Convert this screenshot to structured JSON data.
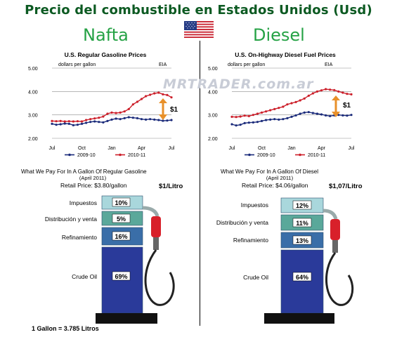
{
  "page_title": "Precio del combustible en Estados Unidos (Usd)",
  "flag_icon": "us-flag-icon",
  "watermark": "MRTRADER.com.ar",
  "footnote": "1 Gallon = 3.785 Litros",
  "colors": {
    "title": "#0c5a22",
    "fuel_heading": "#25a245",
    "series_2009_10": "#1a2a7a",
    "series_2010_11": "#cc1f2a",
    "taxes": "#a9d7dc",
    "distribution": "#5aa89a",
    "refining": "#3a6ea8",
    "crude_oil": "#2a3a9a",
    "pump_red": "#d8202a"
  },
  "panels": [
    {
      "heading": "Nafta",
      "price_annotation": "$1",
      "breakdown_title": "What We Pay For In A Gallon Of Regular Gasoline",
      "breakdown_date": "(April 2011)",
      "retail_price": "Retail Price: $3.80/gallon",
      "per_litre": "$1/Litro",
      "components": [
        {
          "label": "Impuestos",
          "value": "10%",
          "pct": 10
        },
        {
          "label": "Distribución y venta",
          "value": "5%",
          "pct": 5
        },
        {
          "label": "Refinamiento",
          "value": "16%",
          "pct": 16
        },
        {
          "label": "Crude Oil",
          "value": "69%",
          "pct": 69
        }
      ]
    },
    {
      "heading": "Diesel",
      "price_annotation": "$1",
      "breakdown_title": "What We Pay For In A Gallon Of Diesel",
      "breakdown_date": "(April 2011)",
      "retail_price": "Retail Price: $4.06/gallon",
      "per_litre": "$1,07/Litro",
      "components": [
        {
          "label": "Impuestos",
          "value": "12%",
          "pct": 12
        },
        {
          "label": "Distribución y venta",
          "value": "11%",
          "pct": 11
        },
        {
          "label": "Refinamiento",
          "value": "13%",
          "pct": 13
        },
        {
          "label": "Crude Oil",
          "value": "64%",
          "pct": 64
        }
      ]
    }
  ],
  "chart_data": [
    {
      "type": "line",
      "title": "U.S. Regular Gasoline Prices",
      "ylabel": "dollars per gallon",
      "source": "EIA",
      "ylim": [
        2.0,
        5.0
      ],
      "yticks": [
        "2.00",
        "3.00",
        "4.00",
        "5.00"
      ],
      "xticks": [
        "Jul",
        "Oct",
        "Jan",
        "Apr",
        "Jul"
      ],
      "grid": "horizontal",
      "legend": "bottom",
      "series": [
        {
          "name": "2009-10",
          "values": [
            2.62,
            2.58,
            2.6,
            2.63,
            2.62,
            2.56,
            2.58,
            2.62,
            2.66,
            2.7,
            2.72,
            2.7,
            2.68,
            2.74,
            2.8,
            2.84,
            2.82,
            2.86,
            2.9,
            2.88,
            2.86,
            2.82,
            2.8,
            2.82,
            2.8,
            2.78,
            2.75,
            2.76,
            2.78
          ]
        },
        {
          "name": "2010-11",
          "values": [
            2.74,
            2.73,
            2.74,
            2.72,
            2.73,
            2.72,
            2.73,
            2.72,
            2.78,
            2.82,
            2.85,
            2.88,
            2.93,
            3.05,
            3.1,
            3.08,
            3.1,
            3.15,
            3.25,
            3.45,
            3.56,
            3.68,
            3.8,
            3.86,
            3.92,
            3.95,
            3.88,
            3.85,
            3.75
          ]
        }
      ]
    },
    {
      "type": "line",
      "title": "U.S. On-Highway Diesel Fuel Prices",
      "ylabel": "dollars per gallon",
      "source": "EIA",
      "ylim": [
        2.0,
        5.0
      ],
      "yticks": [
        "2.00",
        "3.00",
        "4.00",
        "5.00"
      ],
      "xticks": [
        "Jul",
        "Oct",
        "Jan",
        "Apr",
        "Jul"
      ],
      "grid": "horizontal",
      "legend": "bottom",
      "series": [
        {
          "name": "2009-10",
          "values": [
            2.6,
            2.55,
            2.58,
            2.65,
            2.67,
            2.68,
            2.7,
            2.74,
            2.78,
            2.8,
            2.82,
            2.8,
            2.82,
            2.86,
            2.92,
            2.98,
            3.05,
            3.1,
            3.12,
            3.08,
            3.05,
            3.02,
            2.98,
            2.95,
            2.98,
            3.0,
            2.98,
            2.97,
            3.0
          ]
        },
        {
          "name": "2010-11",
          "values": [
            2.92,
            2.91,
            2.93,
            2.97,
            2.95,
            3.0,
            3.05,
            3.1,
            3.15,
            3.2,
            3.25,
            3.3,
            3.35,
            3.45,
            3.5,
            3.55,
            3.62,
            3.7,
            3.82,
            3.92,
            4.0,
            4.05,
            4.1,
            4.08,
            4.06,
            4.0,
            3.95,
            3.9,
            3.88
          ]
        }
      ]
    }
  ]
}
